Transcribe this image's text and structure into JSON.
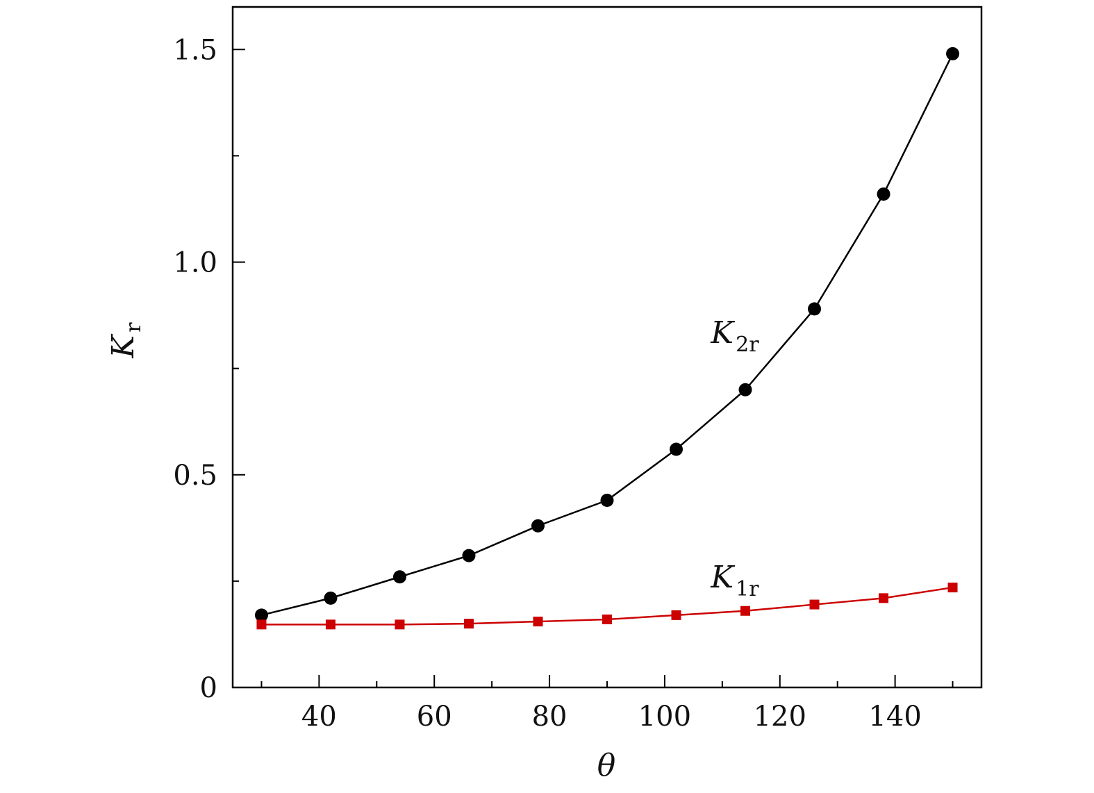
{
  "chart_data": {
    "type": "line",
    "xlabel": "θ",
    "ylabel": {
      "main": "K",
      "sub": "r"
    },
    "xlim": [
      25,
      155
    ],
    "ylim": [
      0,
      1.6
    ],
    "x_ticks": [
      40,
      60,
      80,
      100,
      120,
      140
    ],
    "x_minor_ticks": [
      30,
      50,
      70,
      90,
      110,
      130,
      150
    ],
    "y_ticks": [
      0,
      0.5,
      1.0,
      1.5
    ],
    "y_tick_labels": [
      "0",
      "0.5",
      "1.0",
      "1.5"
    ],
    "y_minor_ticks": [
      0.25,
      0.75,
      1.25
    ],
    "grid": false,
    "x": [
      30,
      42,
      54,
      66,
      78,
      90,
      102,
      114,
      126,
      138,
      150
    ],
    "series": [
      {
        "key": "k2r",
        "label_main": "K",
        "label_sub": "2r",
        "label_at": [
          108,
          0.81
        ],
        "color": "#000000",
        "marker": "circle",
        "values": [
          0.17,
          0.21,
          0.26,
          0.31,
          0.38,
          0.44,
          0.56,
          0.7,
          0.89,
          1.16,
          1.49
        ]
      },
      {
        "key": "k1r",
        "label_main": "K",
        "label_sub": "1r",
        "label_at": [
          108,
          0.235
        ],
        "color": "#cc0000",
        "marker": "square",
        "values": [
          0.148,
          0.148,
          0.148,
          0.15,
          0.155,
          0.16,
          0.17,
          0.18,
          0.195,
          0.21,
          0.235
        ]
      }
    ]
  }
}
